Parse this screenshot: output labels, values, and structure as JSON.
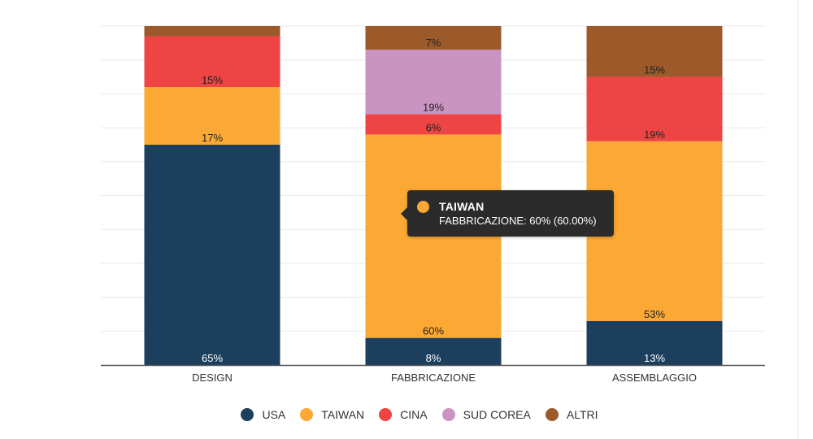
{
  "chart_data": {
    "type": "bar",
    "stacked": true,
    "categories": [
      "DESIGN",
      "FABBRICAZIONE",
      "ASSEMBLAGGIO"
    ],
    "ylim": [
      0,
      100
    ],
    "grid": true,
    "legend_position": "bottom",
    "series": [
      {
        "name": "USA",
        "color": "#1c3f5e",
        "values": [
          65,
          8,
          13
        ],
        "labels": [
          "65%",
          "8%",
          "13%"
        ]
      },
      {
        "name": "TAIWAN",
        "color": "#fba934",
        "values": [
          17,
          60,
          53
        ],
        "labels": [
          "17%",
          "60%",
          "53%"
        ]
      },
      {
        "name": "CINA",
        "color": "#ef4444",
        "values": [
          15,
          6,
          19
        ],
        "labels": [
          "15%",
          "6%",
          "19%"
        ]
      },
      {
        "name": "SUD COREA",
        "color": "#c994c2",
        "values": [
          0,
          19,
          0
        ],
        "labels": [
          "",
          "19%",
          ""
        ]
      },
      {
        "name": "ALTRI",
        "color": "#9c5a2a",
        "values": [
          3,
          7,
          15
        ],
        "labels": [
          "",
          "7%",
          "15%"
        ]
      }
    ]
  },
  "tooltip": {
    "title": "TAIWAN",
    "body": "FABBRICAZIONE: 60% (60.00%)",
    "color": "#fba934"
  }
}
